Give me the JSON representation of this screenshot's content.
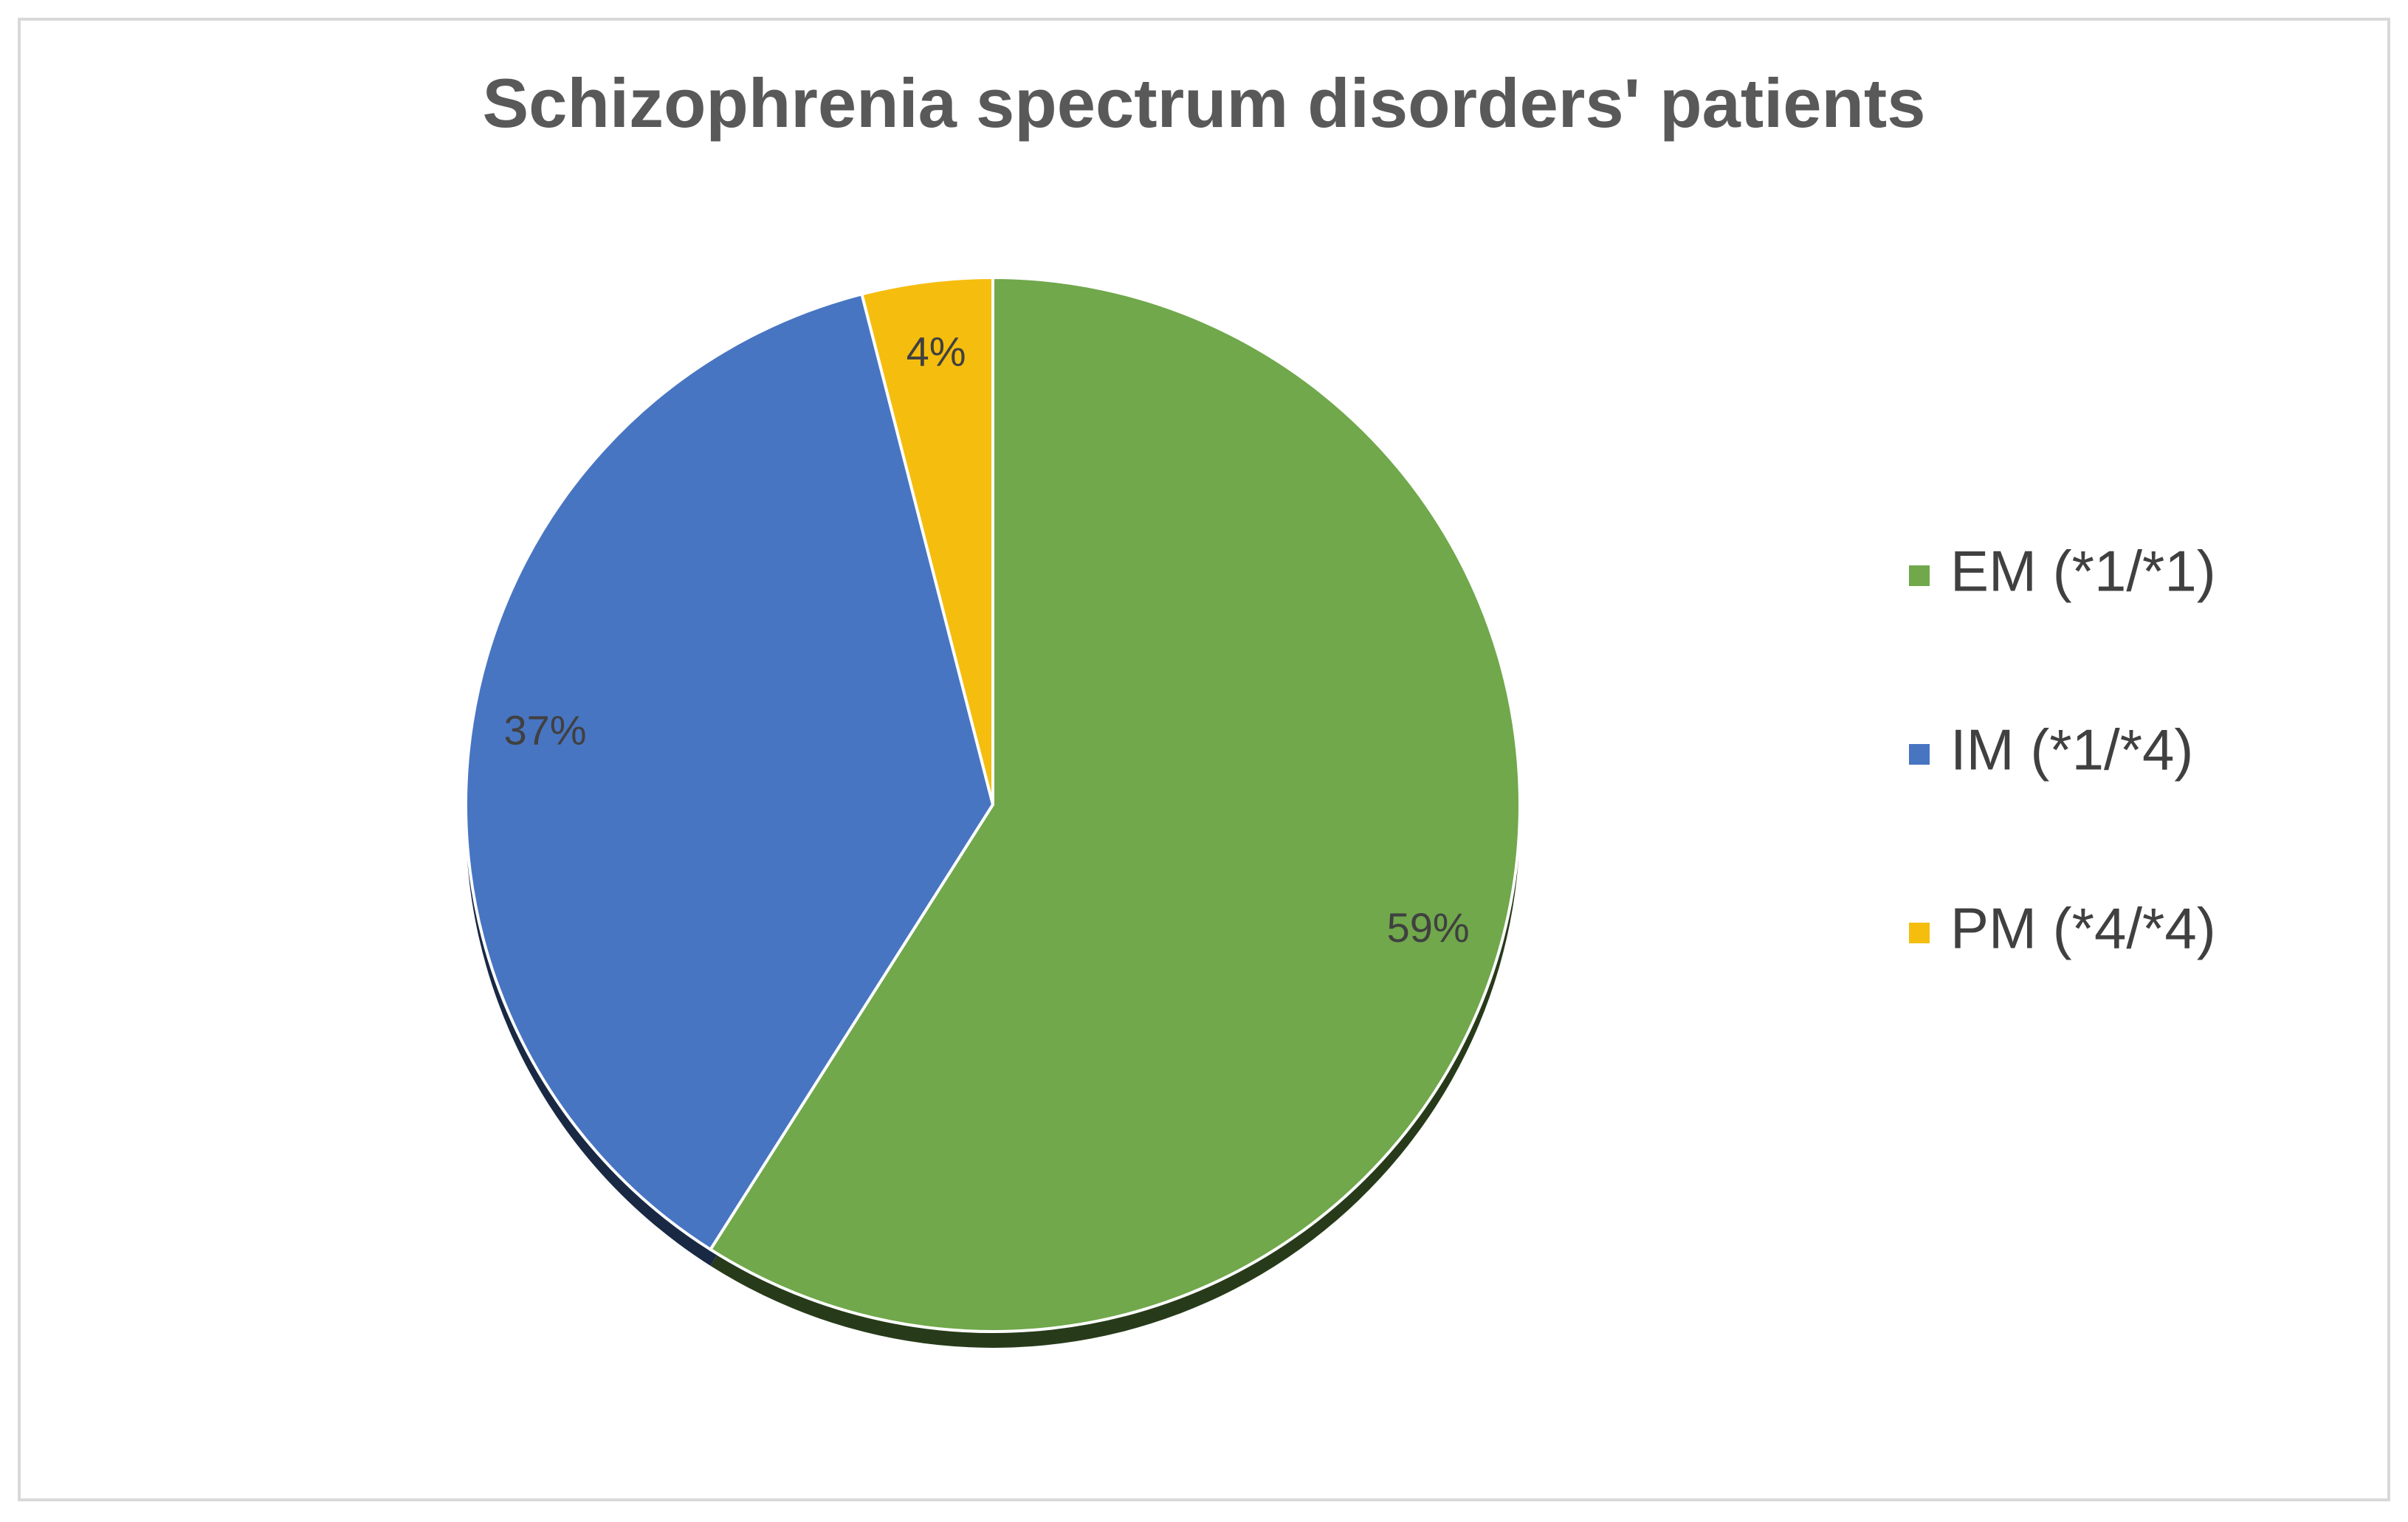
{
  "chart_data": {
    "type": "pie",
    "title": "Schizophrenia spectrum disorders' patients",
    "categories": [
      "EM (*1/*1)",
      "IM (*1/*4)",
      "PM (*4/*4)"
    ],
    "values": [
      59,
      37,
      4
    ],
    "data_labels": [
      "59%",
      "37%",
      "4%"
    ],
    "colors": [
      "#70a84b",
      "#4875c2",
      "#f5bd0e"
    ],
    "legend_position": "right",
    "start_angle": "12 o'clock, clockwise"
  }
}
